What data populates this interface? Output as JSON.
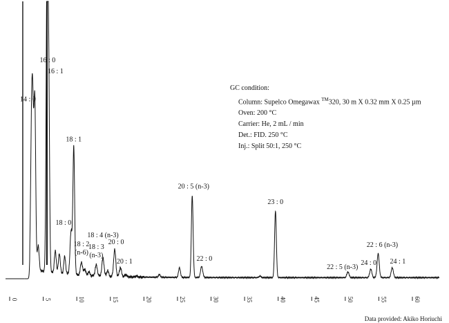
{
  "chart_data": {
    "type": "line",
    "xlabel": "",
    "ylabel": "",
    "xlim": [
      0,
      64
    ],
    "ylim": [
      0,
      100
    ],
    "grid": false,
    "x_ticks": [
      "0",
      "5",
      "10",
      "15",
      "20",
      "25",
      "30",
      "35",
      "40",
      "45",
      "50",
      "55",
      "60"
    ],
    "x_tick_values": [
      0,
      5,
      10,
      15,
      20,
      25,
      30,
      35,
      40,
      45,
      50,
      55,
      60
    ],
    "solvent_front": [
      {
        "x": 1.95,
        "y": 100
      },
      {
        "x": 5.55,
        "y": 100
      }
    ],
    "peaks": [
      {
        "label": "14 : 0",
        "x": 3.75,
        "y": 62
      },
      {
        "label": "16 : 0",
        "x": 5.55,
        "y": 100
      },
      {
        "label": "16 : 1",
        "x": 5.8,
        "y": 77
      },
      {
        "label": "18 : 0",
        "x": 9.15,
        "y": 17
      },
      {
        "label": "18 : 1",
        "x": 9.55,
        "y": 47
      },
      {
        "label": "18 : 2 (n-6)",
        "x": 10.7,
        "y": 6
      },
      {
        "label": "18 : 3 (n-3)",
        "x": 12.9,
        "y": 5
      },
      {
        "label": "18 : 4 (n-3)",
        "x": 13.9,
        "y": 7.5
      },
      {
        "label": "20 : 0",
        "x": 15.65,
        "y": 10.5
      },
      {
        "label": "20 : 1",
        "x": 16.5,
        "y": 4
      },
      {
        "label": "20 : 5 (n-3)",
        "x": 27.2,
        "y": 30
      },
      {
        "label": "22 : 0",
        "x": 28.6,
        "y": 4.5
      },
      {
        "label": "23 : 0",
        "x": 39.6,
        "y": 24.5
      },
      {
        "label": "22 : 5 (n-3)",
        "x": 50.4,
        "y": 2.5
      },
      {
        "label": "24 : 0",
        "x": 53.8,
        "y": 3.5
      },
      {
        "label": "22 : 6 (n-3)",
        "x": 54.9,
        "y": 9
      },
      {
        "label": "24 : 1",
        "x": 57.0,
        "y": 4
      }
    ],
    "minor_peaks": [
      {
        "x": 3.25,
        "y": 47
      },
      {
        "x": 3.45,
        "y": 50
      },
      {
        "x": 4.25,
        "y": 12
      },
      {
        "x": 6.8,
        "y": 10
      },
      {
        "x": 7.4,
        "y": 9
      },
      {
        "x": 8.2,
        "y": 8
      },
      {
        "x": 11.2,
        "y": 3.5
      },
      {
        "x": 11.8,
        "y": 2.5
      },
      {
        "x": 14.6,
        "y": 3
      },
      {
        "x": 17.3,
        "y": 1.5
      },
      {
        "x": 18.9,
        "y": 1
      },
      {
        "x": 22.3,
        "y": 1.5
      },
      {
        "x": 25.3,
        "y": 4
      },
      {
        "x": 37.3,
        "y": 1
      }
    ]
  },
  "gc_condition": {
    "title": "GC condition:",
    "column_prefix": "Column: Supelco Omegawax",
    "column_tm": "TM",
    "column_suffix": "320, 30 m X 0.32 mm X 0.25 µm",
    "oven": "Oven: 200 °C",
    "carrier": "Carrier: He, 2 mL / min",
    "detector": "Det.: FID. 250 °C",
    "injector": "Inj.: Split 50:1, 250 °C"
  },
  "credit": "Data provided: Akiko Horiuchi",
  "colors": {
    "trace": "#111111",
    "axis": "#222222",
    "text": "#111111",
    "background": "#ffffff"
  }
}
